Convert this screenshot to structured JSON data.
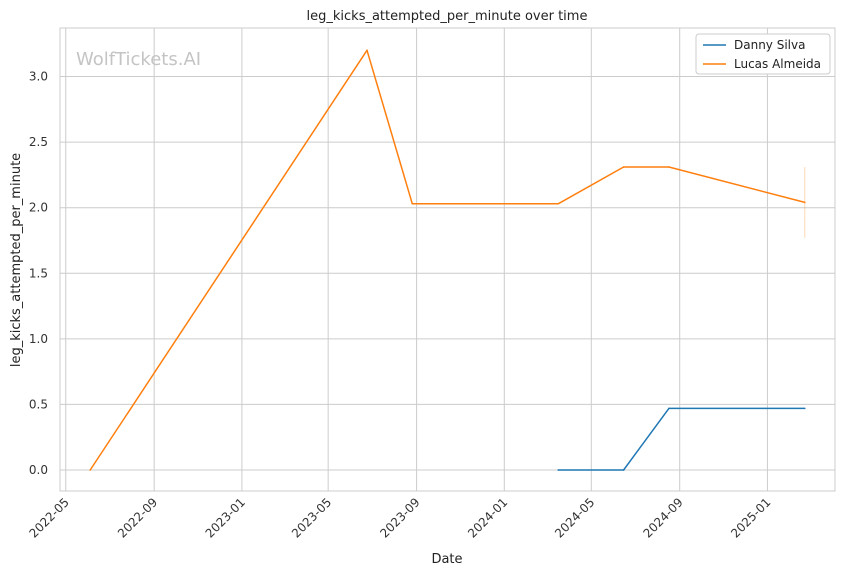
{
  "chart_data": {
    "type": "line",
    "title": "leg_kicks_attempted_per_minute over time",
    "xlabel": "Date",
    "ylabel": "leg_kicks_attempted_per_minute",
    "watermark": "WolfTickets.AI",
    "x_ticks": [
      "2022-05",
      "2022-09",
      "2023-01",
      "2023-05",
      "2023-09",
      "2024-01",
      "2024-05",
      "2024-09",
      "2025-01"
    ],
    "y_ticks": [
      "0.0",
      "0.5",
      "1.0",
      "1.5",
      "2.0",
      "2.5",
      "3.0"
    ],
    "xlim": [
      "2022-04-23",
      "2025-04-05"
    ],
    "ylim": [
      -0.16,
      3.37
    ],
    "grid": true,
    "legend_position": "top-right",
    "series": [
      {
        "name": "Danny Silva",
        "color": "#1f77b4",
        "points": [
          {
            "x": "2024-03-16",
            "y": 0.0
          },
          {
            "x": "2024-06-15",
            "y": 0.0
          },
          {
            "x": "2024-08-17",
            "y": 0.47
          },
          {
            "x": "2025-02-22",
            "y": 0.47
          }
        ]
      },
      {
        "name": "Lucas Almeida",
        "color": "#ff7f0e",
        "points": [
          {
            "x": "2022-06-04",
            "y": 0.0
          },
          {
            "x": "2023-06-24",
            "y": 3.2
          },
          {
            "x": "2023-08-26",
            "y": 2.03
          },
          {
            "x": "2024-03-16",
            "y": 2.03
          },
          {
            "x": "2024-06-15",
            "y": 2.31
          },
          {
            "x": "2024-08-17",
            "y": 2.31
          },
          {
            "x": "2025-02-22",
            "y": 2.04
          }
        ]
      }
    ],
    "error_bar": {
      "x": "2025-02-22",
      "y_low": 1.77,
      "y_high": 2.31,
      "color": "#ff7f0e"
    }
  }
}
